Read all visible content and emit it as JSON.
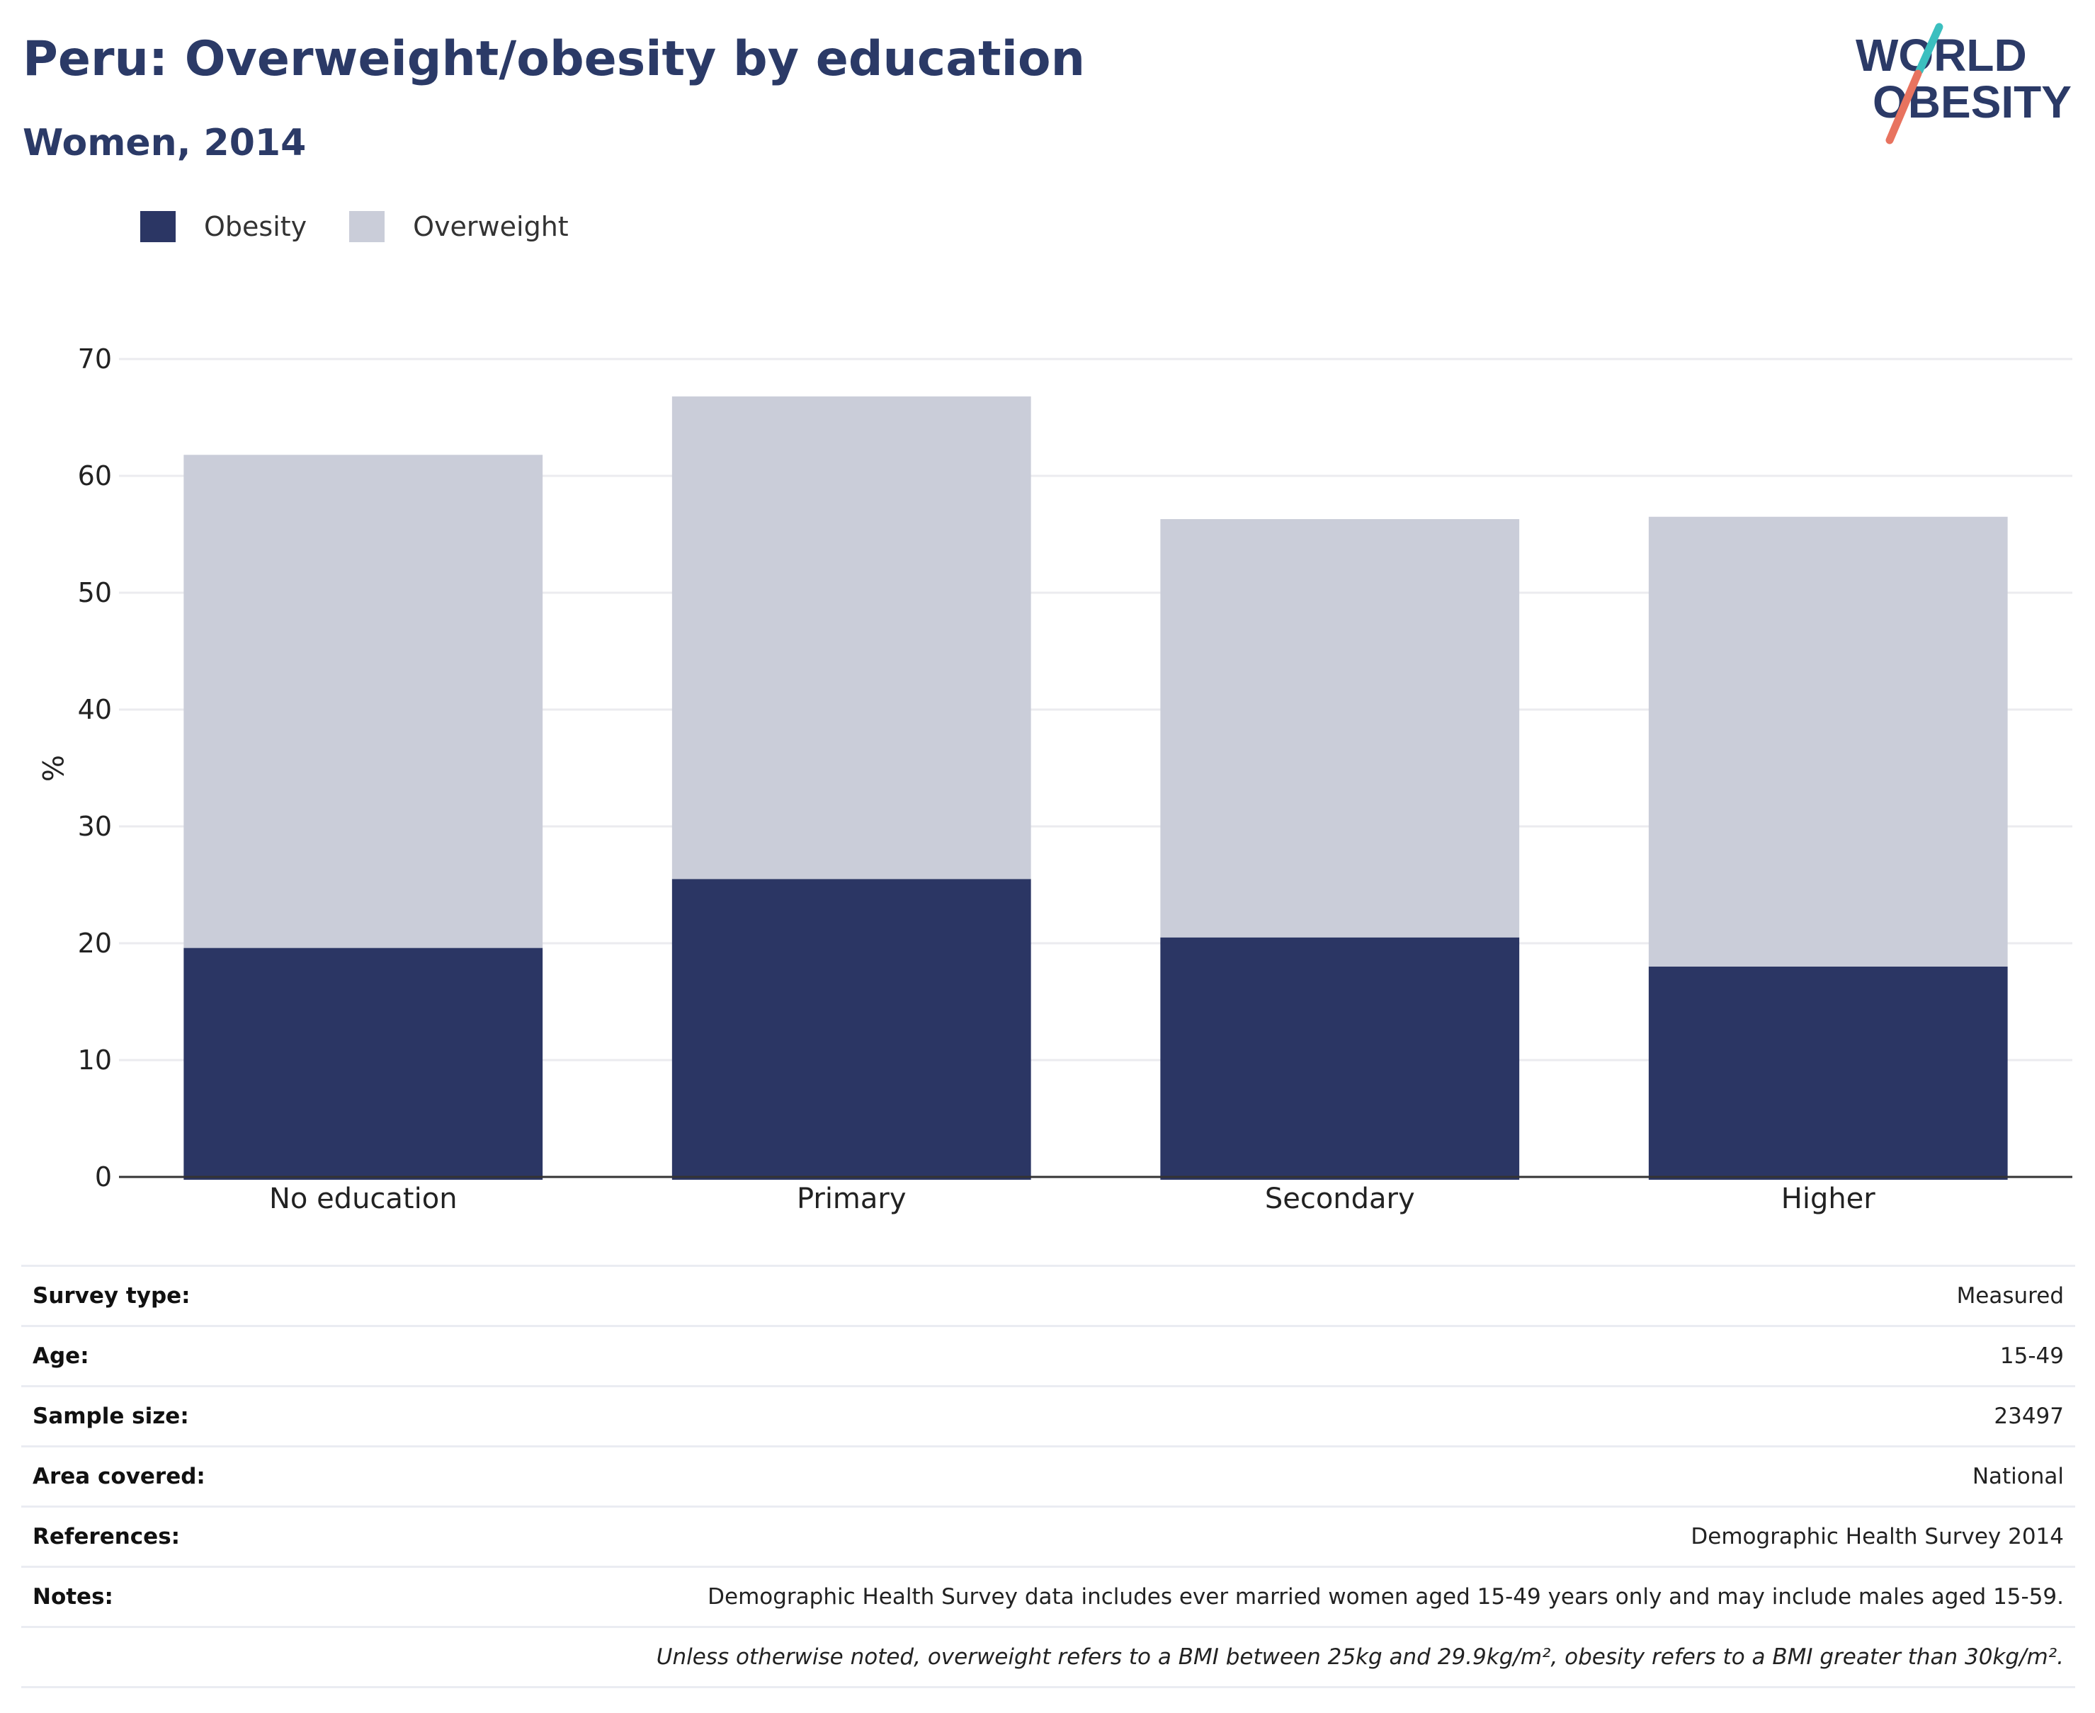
{
  "title": "Peru: Overweight/obesity by education",
  "subtitle": "Women, 2014",
  "logo": {
    "line1": "WORLD",
    "line2": "OBESITY"
  },
  "colors": {
    "obesity": "#2b3664",
    "overweight": "#cacdd9",
    "title": "#2b3a67",
    "accent_teal": "#3bbfbf",
    "accent_coral": "#e8735f"
  },
  "legend": [
    {
      "label": "Obesity",
      "color": "#2b3664"
    },
    {
      "label": "Overweight",
      "color": "#cacdd9"
    }
  ],
  "chart_data": {
    "type": "bar",
    "stacked": true,
    "categories": [
      "No education",
      "Primary",
      "Secondary",
      "Higher"
    ],
    "series": [
      {
        "name": "Obesity",
        "values": [
          19.6,
          25.5,
          20.5,
          18.0
        ]
      },
      {
        "name": "Overweight",
        "values": [
          42.2,
          41.3,
          35.8,
          38.5
        ]
      }
    ],
    "ylabel": "%",
    "ylim": [
      0,
      70
    ],
    "yticks": [
      0,
      10,
      20,
      30,
      40,
      50,
      60,
      70
    ],
    "grid": true
  },
  "info": [
    {
      "label": "Survey type:",
      "value": "Measured"
    },
    {
      "label": "Age:",
      "value": "15-49"
    },
    {
      "label": "Sample size:",
      "value": "23497"
    },
    {
      "label": "Area covered:",
      "value": "National"
    },
    {
      "label": "References:",
      "value": "Demographic Health Survey 2014"
    },
    {
      "label": "Notes:",
      "value": "Demographic Health Survey data includes ever married women aged 15-49 years only and may include males aged 15-59."
    }
  ],
  "footnote": "Unless otherwise noted, overweight refers to a BMI between 25kg and 29.9kg/m², obesity refers to a BMI greater than 30kg/m²."
}
